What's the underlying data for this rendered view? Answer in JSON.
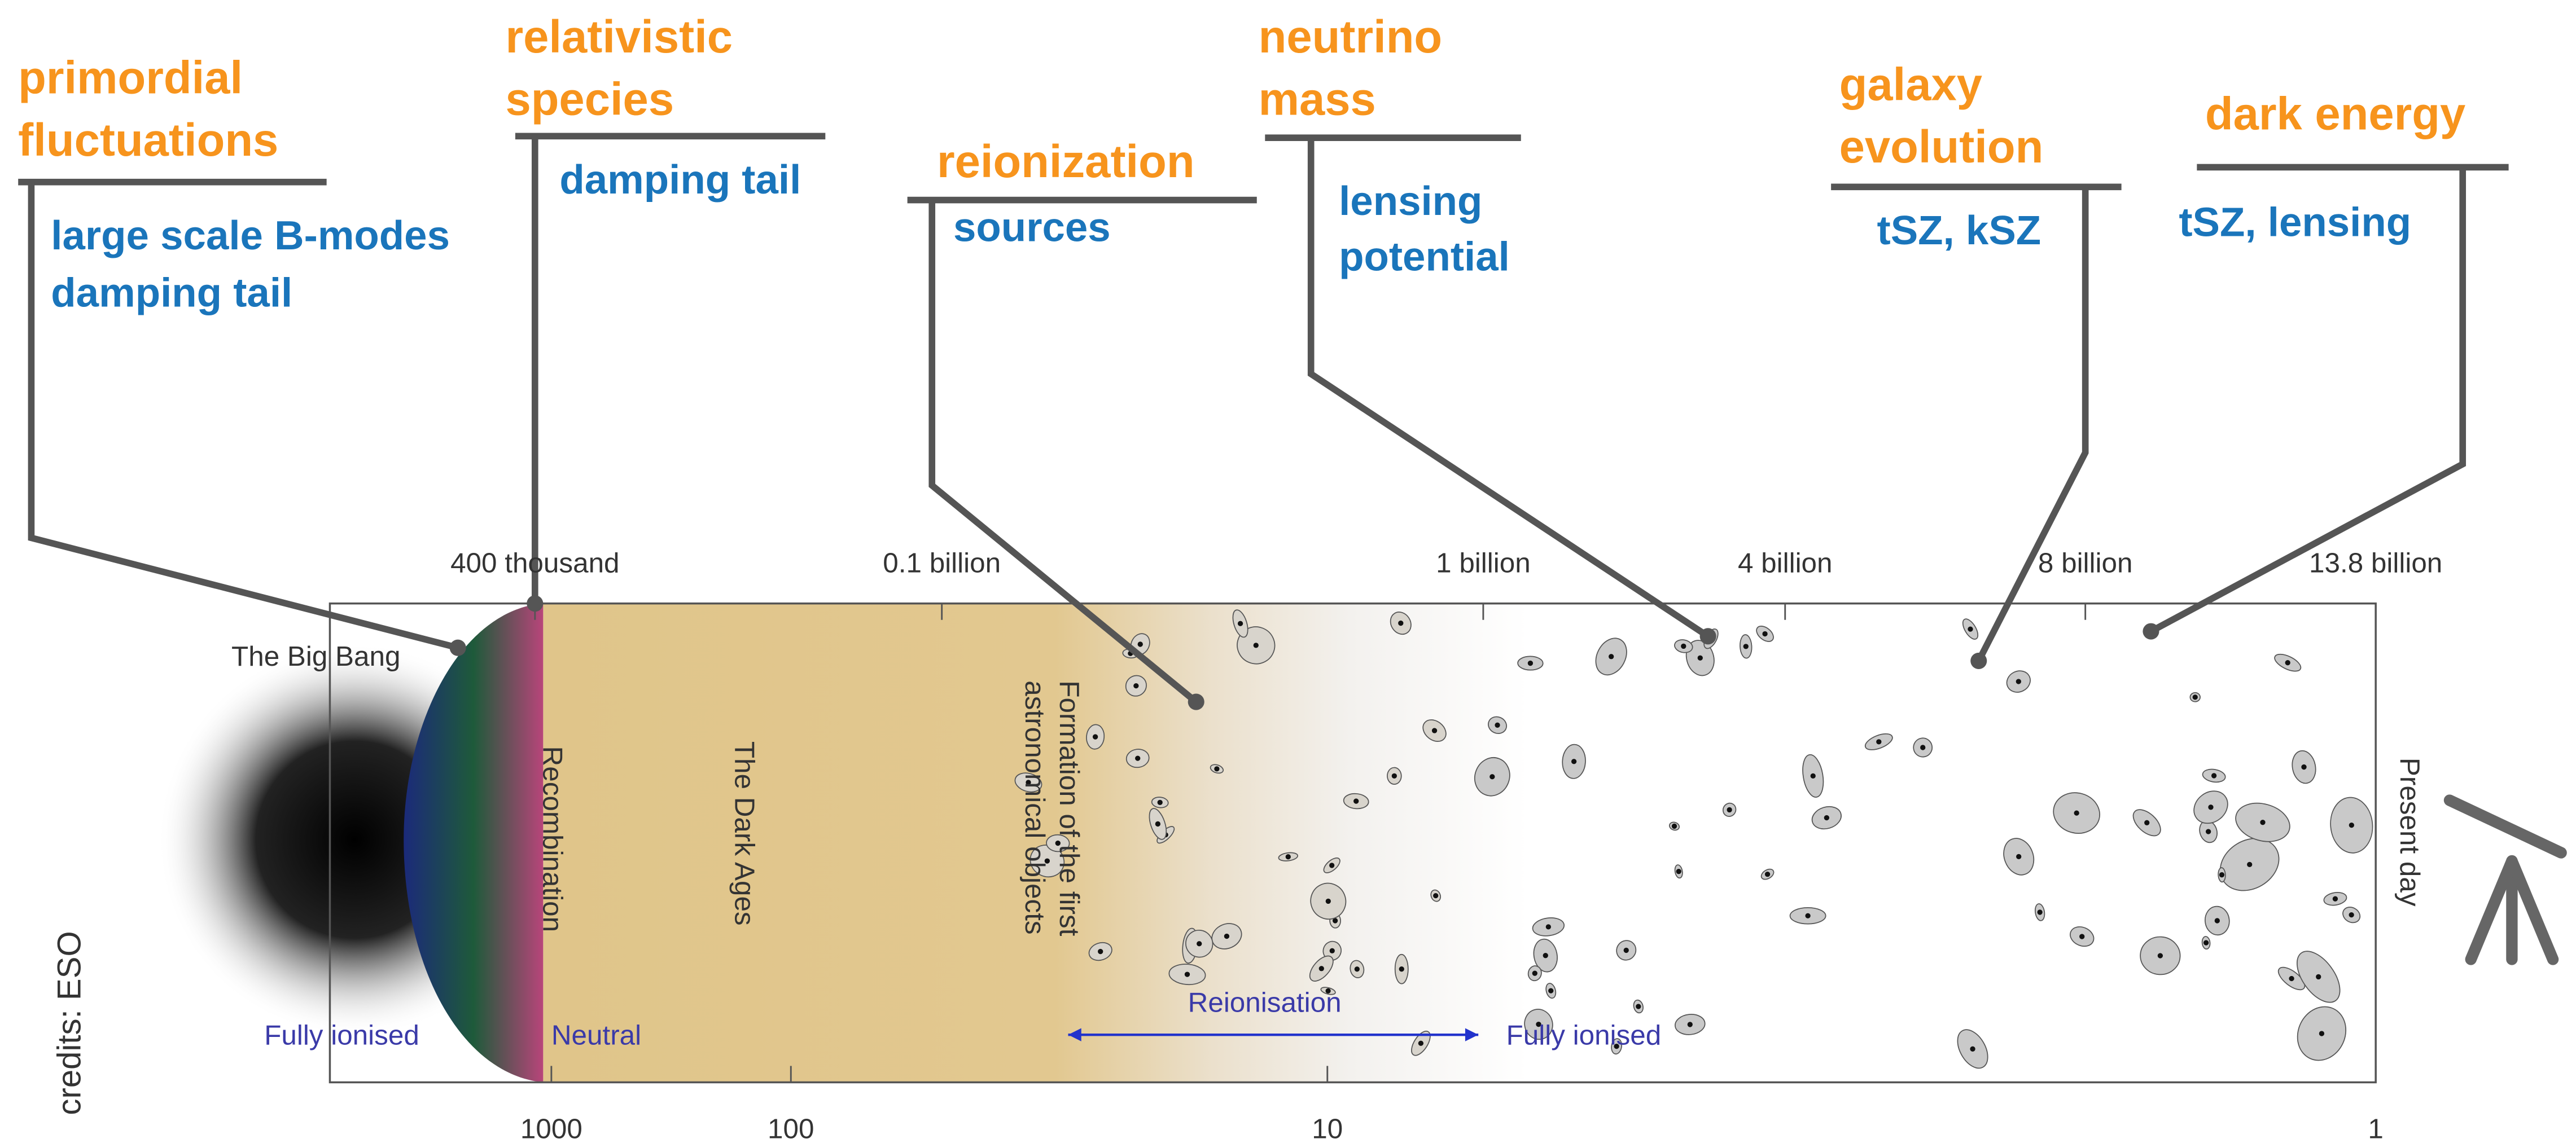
{
  "annotations": [
    {
      "title_lines": [
        "primordial",
        "fluctuations"
      ],
      "detail_lines": [
        "large scale B-modes",
        "damping tail"
      ]
    },
    {
      "title_lines": [
        "relativistic",
        "species"
      ],
      "detail_lines": [
        "damping tail"
      ]
    },
    {
      "title_lines": [
        "reionization"
      ],
      "detail_lines": [
        "sources"
      ]
    },
    {
      "title_lines": [
        "neutrino",
        "mass"
      ],
      "detail_lines": [
        "lensing",
        "potential"
      ]
    },
    {
      "title_lines": [
        "galaxy",
        "evolution"
      ],
      "detail_lines": [
        "tSZ, kSZ"
      ]
    },
    {
      "title_lines": [
        "dark energy"
      ],
      "detail_lines": [
        "tSZ, lensing"
      ]
    }
  ],
  "timeline": {
    "age_labels": [
      "400 thousand",
      "0.1 billion",
      "1 billion",
      "4 billion",
      "8 billion",
      "13.8 billion"
    ],
    "redshift_labels": [
      "1000",
      "100",
      "10",
      "1"
    ],
    "big_bang": "The Big Bang",
    "recombination": "Recombination",
    "dark_ages": "The Dark Ages",
    "formation_lines": [
      "Formation of the first",
      "astronomical objects"
    ],
    "reionisation": "Reionisation",
    "fully_ionised_early": "Fully ionised",
    "neutral": "Neutral",
    "fully_ionised_late": "Fully ionised",
    "present_day": "Present day"
  },
  "credits": "credits: ESO"
}
